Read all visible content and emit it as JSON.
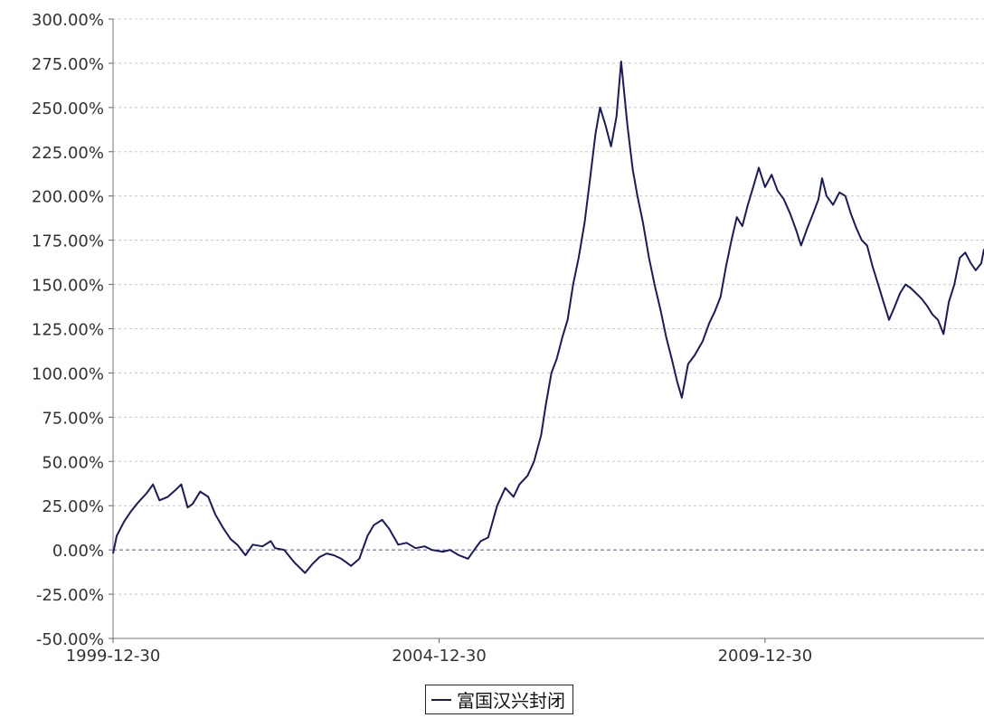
{
  "chart_data": {
    "type": "line",
    "title": "",
    "xlabel": "",
    "ylabel": "",
    "x_start": "1999-12-30",
    "x_end": "2013-05-10",
    "x_ticks": [
      "1999-12-30",
      "2004-12-30",
      "2009-12-30"
    ],
    "ylim": [
      -50,
      300
    ],
    "y_ticks": [
      -50,
      -25,
      0,
      25,
      50,
      75,
      100,
      125,
      150,
      175,
      200,
      225,
      250,
      275,
      300
    ],
    "y_tick_labels": [
      "-50.00%",
      "-25.00%",
      "0.00%",
      "25.00%",
      "50.00%",
      "75.00%",
      "100.00%",
      "125.00%",
      "150.00%",
      "175.00%",
      "200.00%",
      "225.00%",
      "250.00%",
      "275.00%",
      "300.00%"
    ],
    "grid": true,
    "legend_position": "bottom-center",
    "line_color": "#1a1a5e",
    "zero_line_color": "#5555aa",
    "series": [
      {
        "name": "富国汉兴封闭",
        "points": [
          [
            "1999-12-30",
            -2
          ],
          [
            "2000-01-20",
            8
          ],
          [
            "2000-03-01",
            16
          ],
          [
            "2000-04-10",
            22
          ],
          [
            "2000-05-20",
            27
          ],
          [
            "2000-07-05",
            32
          ],
          [
            "2000-08-10",
            37
          ],
          [
            "2000-09-15",
            28
          ],
          [
            "2000-11-01",
            30
          ],
          [
            "2000-12-15",
            34
          ],
          [
            "2001-01-15",
            37
          ],
          [
            "2001-02-20",
            24
          ],
          [
            "2001-03-20",
            26
          ],
          [
            "2001-05-01",
            33
          ],
          [
            "2001-06-15",
            30
          ],
          [
            "2001-07-25",
            20
          ],
          [
            "2001-09-10",
            12
          ],
          [
            "2001-10-20",
            6
          ],
          [
            "2001-11-25",
            3
          ],
          [
            "2002-01-10",
            -3
          ],
          [
            "2002-02-20",
            3
          ],
          [
            "2002-04-15",
            2
          ],
          [
            "2002-06-01",
            5
          ],
          [
            "2002-06-25",
            1
          ],
          [
            "2002-08-15",
            0
          ],
          [
            "2002-10-10",
            -7
          ],
          [
            "2002-12-10",
            -13
          ],
          [
            "2003-01-20",
            -8
          ],
          [
            "2003-03-01",
            -4
          ],
          [
            "2003-04-10",
            -2
          ],
          [
            "2003-05-20",
            -3
          ],
          [
            "2003-07-01",
            -5
          ],
          [
            "2003-08-25",
            -9
          ],
          [
            "2003-10-10",
            -5
          ],
          [
            "2003-11-25",
            8
          ],
          [
            "2003-12-30",
            14
          ],
          [
            "2004-02-15",
            17
          ],
          [
            "2004-03-25",
            12
          ],
          [
            "2004-05-15",
            3
          ],
          [
            "2004-07-01",
            4
          ],
          [
            "2004-08-20",
            1
          ],
          [
            "2004-10-10",
            2
          ],
          [
            "2004-11-20",
            0
          ],
          [
            "2005-01-20",
            -1
          ],
          [
            "2005-03-01",
            0
          ],
          [
            "2005-04-20",
            -3
          ],
          [
            "2005-06-10",
            -5
          ],
          [
            "2005-07-15",
            0
          ],
          [
            "2005-08-20",
            5
          ],
          [
            "2005-10-01",
            7
          ],
          [
            "2005-11-20",
            25
          ],
          [
            "2006-01-05",
            35
          ],
          [
            "2006-02-20",
            30
          ],
          [
            "2006-03-25",
            37
          ],
          [
            "2006-05-10",
            42
          ],
          [
            "2006-06-15",
            50
          ],
          [
            "2006-07-25",
            65
          ],
          [
            "2006-08-20",
            82
          ],
          [
            "2006-09-20",
            100
          ],
          [
            "2006-10-20",
            108
          ],
          [
            "2006-11-20",
            120
          ],
          [
            "2006-12-20",
            130
          ],
          [
            "2007-01-20",
            150
          ],
          [
            "2007-02-20",
            165
          ],
          [
            "2007-03-25",
            185
          ],
          [
            "2007-04-25",
            210
          ],
          [
            "2007-05-25",
            235
          ],
          [
            "2007-06-20",
            250
          ],
          [
            "2007-07-20",
            240
          ],
          [
            "2007-08-20",
            228
          ],
          [
            "2007-09-20",
            245
          ],
          [
            "2007-10-16",
            276
          ],
          [
            "2007-11-20",
            240
          ],
          [
            "2007-12-20",
            215
          ],
          [
            "2008-01-15",
            200
          ],
          [
            "2008-02-15",
            185
          ],
          [
            "2008-03-20",
            165
          ],
          [
            "2008-04-20",
            150
          ],
          [
            "2008-05-25",
            135
          ],
          [
            "2008-06-25",
            120
          ],
          [
            "2008-07-25",
            108
          ],
          [
            "2008-08-25",
            95
          ],
          [
            "2008-09-20",
            86
          ],
          [
            "2008-10-25",
            105
          ],
          [
            "2008-12-01",
            110
          ],
          [
            "2009-01-15",
            118
          ],
          [
            "2009-02-20",
            128
          ],
          [
            "2009-03-25",
            135
          ],
          [
            "2009-04-25",
            143
          ],
          [
            "2009-05-25",
            160
          ],
          [
            "2009-06-25",
            175
          ],
          [
            "2009-07-25",
            188
          ],
          [
            "2009-08-25",
            183
          ],
          [
            "2009-09-25",
            195
          ],
          [
            "2009-10-25",
            205
          ],
          [
            "2009-11-25",
            216
          ],
          [
            "2009-12-30",
            205
          ],
          [
            "2010-02-05",
            212
          ],
          [
            "2010-03-10",
            203
          ],
          [
            "2010-04-15",
            198
          ],
          [
            "2010-05-20",
            190
          ],
          [
            "2010-06-25",
            180
          ],
          [
            "2010-07-20",
            172
          ],
          [
            "2010-08-25",
            182
          ],
          [
            "2010-09-25",
            190
          ],
          [
            "2010-10-25",
            198
          ],
          [
            "2010-11-15",
            210
          ],
          [
            "2010-12-10",
            200
          ],
          [
            "2011-01-15",
            195
          ],
          [
            "2011-02-20",
            202
          ],
          [
            "2011-03-25",
            200
          ],
          [
            "2011-04-25",
            190
          ],
          [
            "2011-05-25",
            182
          ],
          [
            "2011-06-25",
            175
          ],
          [
            "2011-07-25",
            172
          ],
          [
            "2011-08-25",
            160
          ],
          [
            "2011-09-25",
            150
          ],
          [
            "2011-10-25",
            140
          ],
          [
            "2011-11-25",
            130
          ],
          [
            "2011-12-25",
            137
          ],
          [
            "2012-01-25",
            145
          ],
          [
            "2012-02-25",
            150
          ],
          [
            "2012-03-25",
            148
          ],
          [
            "2012-04-25",
            145
          ],
          [
            "2012-05-25",
            142
          ],
          [
            "2012-06-25",
            138
          ],
          [
            "2012-07-25",
            133
          ],
          [
            "2012-08-25",
            130
          ],
          [
            "2012-09-25",
            122
          ],
          [
            "2012-10-25",
            140
          ],
          [
            "2012-11-25",
            150
          ],
          [
            "2012-12-25",
            165
          ],
          [
            "2013-01-25",
            168
          ],
          [
            "2013-02-25",
            162
          ],
          [
            "2013-03-25",
            158
          ],
          [
            "2013-04-25",
            162
          ],
          [
            "2013-05-10",
            170
          ]
        ]
      }
    ]
  }
}
